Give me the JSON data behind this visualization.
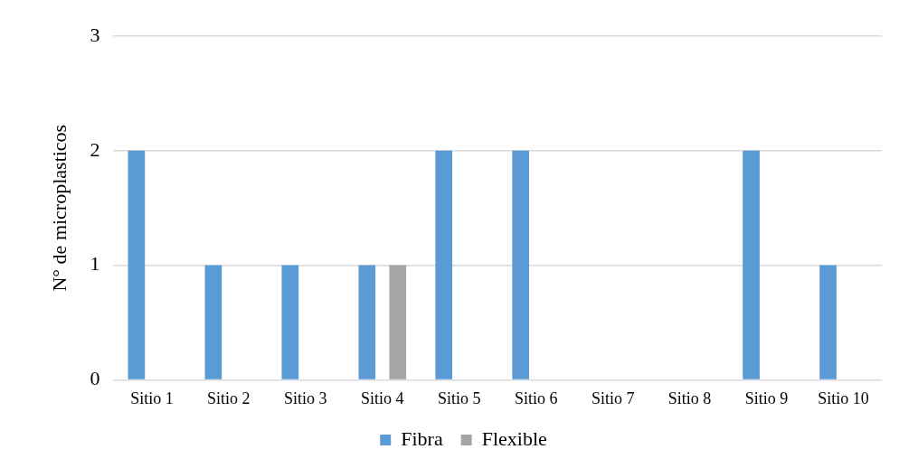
{
  "chart_data": {
    "type": "bar",
    "ylabel": "N° de microplasticos",
    "categories": [
      "Sitio 1",
      "Sitio 2",
      "Sitio 3",
      "Sitio 4",
      "Sitio 5",
      "Sitio 6",
      "Sitio 7",
      "Sitio 8",
      "Sitio 9",
      "Sitio 10"
    ],
    "series": [
      {
        "name": "Fibra",
        "color": "#5b9bd5",
        "values": [
          2,
          1,
          1,
          1,
          2,
          2,
          0,
          0,
          2,
          1
        ]
      },
      {
        "name": "Flexible",
        "color": "#a5a5a5",
        "values": [
          0,
          0,
          0,
          1,
          0,
          0,
          0,
          0,
          0,
          0
        ]
      }
    ],
    "ylim": [
      0,
      3
    ],
    "yticks": [
      0,
      1,
      2,
      3
    ],
    "grid": "y",
    "legend": "bottom"
  }
}
